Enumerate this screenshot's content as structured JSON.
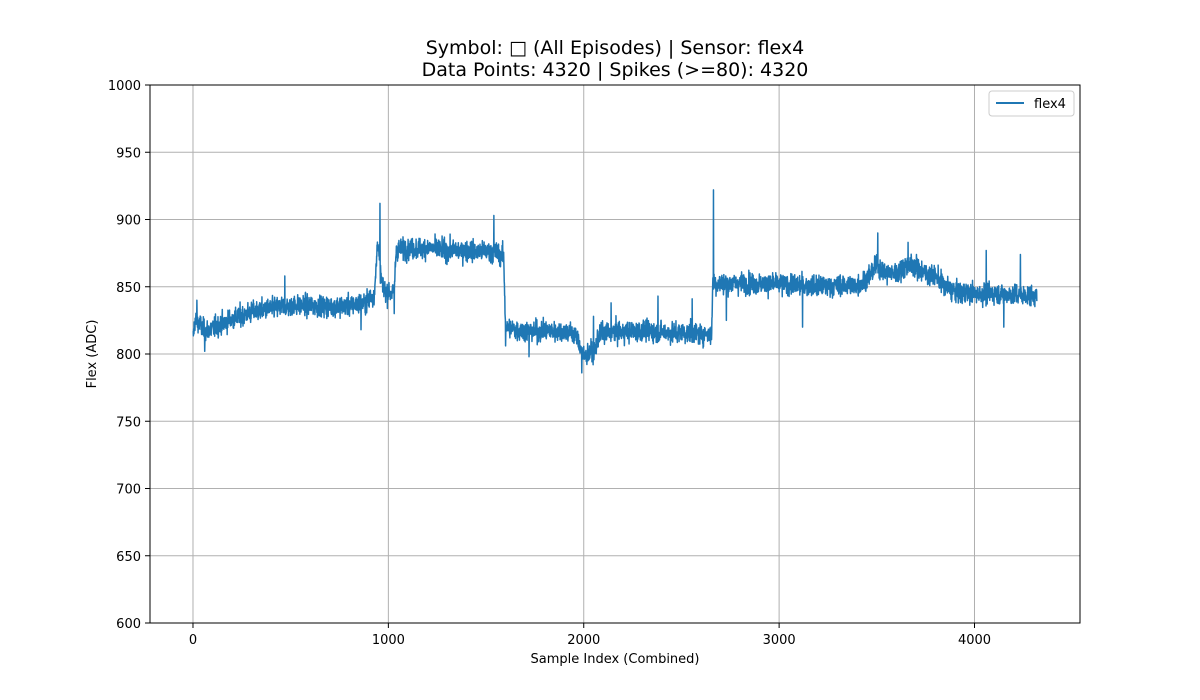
{
  "chart_data": {
    "type": "line",
    "title": "Symbol: □ (All Episodes) | Sensor: flex4",
    "subtitle": "Data Points: 4320 | Spikes (>=80): 4320",
    "xlabel": "Sample Index (Combined)",
    "ylabel": "Flex (ADC)",
    "xlim": [
      -220,
      4540
    ],
    "ylim": [
      600,
      1000
    ],
    "x_ticks": [
      0,
      1000,
      2000,
      3000,
      4000
    ],
    "x_tick_labels": [
      "0",
      "1000",
      "2000",
      "3000",
      "4000"
    ],
    "y_ticks": [
      600,
      650,
      700,
      750,
      800,
      850,
      900,
      950,
      1000
    ],
    "y_tick_labels": [
      "600",
      "650",
      "700",
      "750",
      "800",
      "850",
      "900",
      "950",
      "1000"
    ],
    "grid": true,
    "legend_position": "top-right",
    "series": [
      {
        "name": "flex4",
        "color": "#1f77b4",
        "n_points": 4320,
        "noise": 7,
        "x": [
          0,
          10,
          30,
          60,
          100,
          200,
          300,
          400,
          500,
          600,
          700,
          800,
          880,
          930,
          945,
          955,
          960,
          970,
          990,
          1030,
          1040,
          1100,
          1200,
          1300,
          1400,
          1500,
          1560,
          1590,
          1600,
          1650,
          1700,
          1800,
          1900,
          1960,
          1985,
          2000,
          2030,
          2060,
          2080,
          2150,
          2300,
          2450,
          2600,
          2655,
          2660,
          2670,
          2700,
          2800,
          2900,
          3000,
          3100,
          3200,
          3300,
          3400,
          3450,
          3500,
          3550,
          3600,
          3650,
          3700,
          3750,
          3800,
          3850,
          3900,
          4000,
          4100,
          4200,
          4319
        ],
        "y": [
          812,
          825,
          823,
          817,
          819,
          826,
          831,
          834,
          836,
          836,
          835,
          836,
          838,
          845,
          885,
          870,
          860,
          850,
          846,
          846,
          878,
          878,
          879,
          877,
          877,
          876,
          875,
          872,
          820,
          818,
          817,
          817,
          817,
          814,
          805,
          797,
          801,
          803,
          815,
          816,
          817,
          816,
          815,
          815,
          855,
          852,
          852,
          853,
          852,
          852,
          851,
          850,
          851,
          851,
          856,
          866,
          860,
          860,
          866,
          865,
          860,
          858,
          850,
          846,
          845,
          845,
          844,
          843
        ]
      }
    ],
    "spikes": [
      {
        "x": 20,
        "y": 840
      },
      {
        "x": 60,
        "y": 802
      },
      {
        "x": 470,
        "y": 858
      },
      {
        "x": 860,
        "y": 818
      },
      {
        "x": 957,
        "y": 912
      },
      {
        "x": 1030,
        "y": 830
      },
      {
        "x": 1540,
        "y": 903
      },
      {
        "x": 1600,
        "y": 806
      },
      {
        "x": 1720,
        "y": 798
      },
      {
        "x": 1990,
        "y": 786
      },
      {
        "x": 2050,
        "y": 828
      },
      {
        "x": 2140,
        "y": 838
      },
      {
        "x": 2380,
        "y": 843
      },
      {
        "x": 2555,
        "y": 841
      },
      {
        "x": 2664,
        "y": 922
      },
      {
        "x": 2730,
        "y": 825
      },
      {
        "x": 3120,
        "y": 820
      },
      {
        "x": 3505,
        "y": 890
      },
      {
        "x": 3660,
        "y": 883
      },
      {
        "x": 4060,
        "y": 877
      },
      {
        "x": 4150,
        "y": 820
      },
      {
        "x": 4235,
        "y": 874
      }
    ]
  }
}
